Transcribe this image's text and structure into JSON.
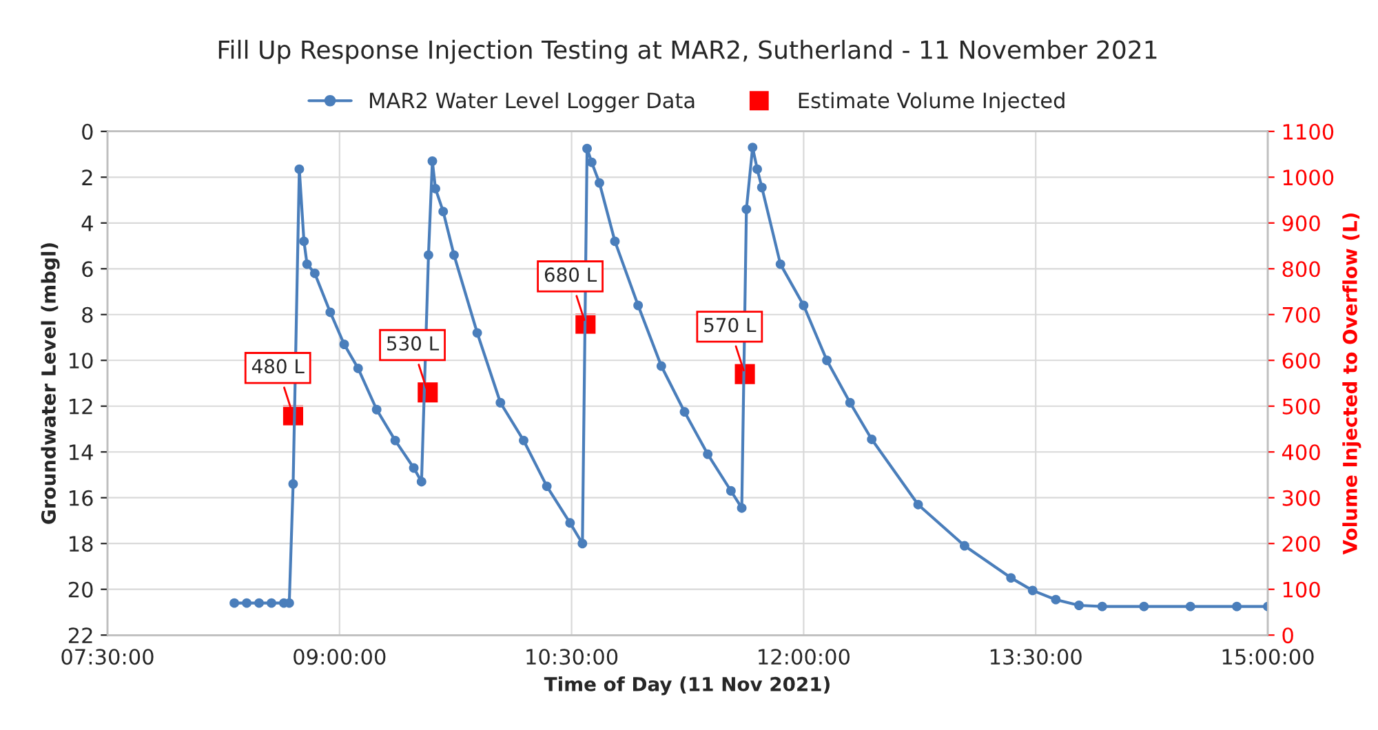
{
  "chart_data": {
    "type": "line",
    "title": "Fill Up Response Injection Testing at MAR2, Sutherland - 11 November 2021",
    "xlabel": "Time of Day (11 Nov 2021)",
    "ylabel": "Groundwater Level (mbgl)",
    "y2label": "Volume Injected to Overflow (L)",
    "xlim": [
      7.5,
      15
    ],
    "xticks": [
      {
        "value": 7.5,
        "label": "07:30:00"
      },
      {
        "value": 9,
        "label": "09:00:00"
      },
      {
        "value": 10.5,
        "label": "10:30:00"
      },
      {
        "value": 12,
        "label": "12:00:00"
      },
      {
        "value": 13.5,
        "label": "13:30:00"
      },
      {
        "value": 15,
        "label": "15:00:00"
      }
    ],
    "ylim": [
      22,
      0
    ],
    "yticks": [
      0,
      2,
      4,
      6,
      8,
      10,
      12,
      14,
      16,
      18,
      20,
      22
    ],
    "y2lim": [
      0,
      1100
    ],
    "y2ticks": [
      0,
      100,
      200,
      300,
      400,
      500,
      600,
      700,
      800,
      900,
      1000,
      1100
    ],
    "grid": true,
    "legend": "top",
    "series": [
      {
        "name": "MAR2 Water Level Logger Data",
        "color": "#4a7ebb",
        "marker": "circle",
        "x": [
          8.32,
          8.4,
          8.48,
          8.56,
          8.64,
          8.675,
          8.7,
          8.74,
          8.77,
          8.79,
          8.84,
          8.94,
          9.03,
          9.12,
          9.24,
          9.36,
          9.48,
          9.53,
          9.575,
          9.6,
          9.62,
          9.67,
          9.74,
          9.89,
          10.04,
          10.19,
          10.34,
          10.49,
          10.57,
          10.6,
          10.63,
          10.68,
          10.78,
          10.93,
          11.08,
          11.23,
          11.38,
          11.53,
          11.6,
          11.63,
          11.67,
          11.7,
          11.73,
          11.85,
          12.0,
          12.15,
          12.3,
          12.44,
          12.74,
          13.04,
          13.34,
          13.48,
          13.63,
          13.78,
          13.93,
          14.2,
          14.5,
          14.8,
          15.0
        ],
        "values": [
          20.6,
          20.6,
          20.6,
          20.6,
          20.6,
          20.6,
          15.4,
          1.65,
          4.8,
          5.8,
          6.2,
          7.9,
          9.3,
          10.35,
          12.15,
          13.5,
          14.7,
          15.3,
          5.4,
          1.3,
          2.5,
          3.5,
          5.4,
          8.8,
          11.85,
          13.5,
          15.5,
          17.1,
          18.0,
          0.75,
          1.35,
          2.25,
          4.8,
          7.6,
          10.25,
          12.25,
          14.1,
          15.7,
          16.45,
          3.4,
          0.7,
          1.65,
          2.45,
          5.8,
          7.6,
          10.0,
          11.85,
          13.45,
          16.3,
          18.1,
          19.5,
          20.05,
          20.45,
          20.7,
          20.75,
          20.75,
          20.75,
          20.75,
          20.75
        ]
      },
      {
        "name": "Estimate Volume Injected",
        "type": "scatter",
        "axis": "y2",
        "color": "#ff0000",
        "marker": "square",
        "x": [
          8.7,
          9.57,
          10.59,
          11.62
        ],
        "values": [
          480,
          530,
          680,
          570
        ],
        "value_labels": [
          "480 L",
          "530 L",
          "680 L",
          "570 L"
        ]
      }
    ]
  }
}
